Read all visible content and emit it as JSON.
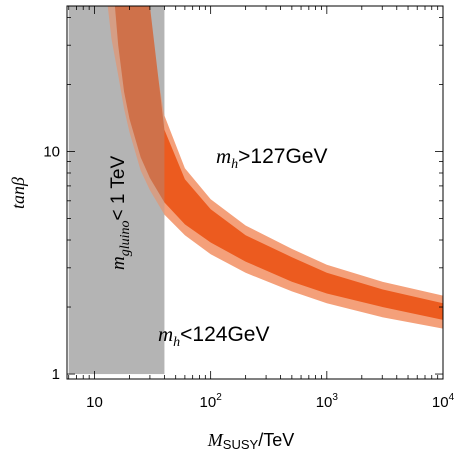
{
  "chart_data": {
    "type": "area",
    "xlabel": "M_SUSY/TeV",
    "xlabel_main": "M",
    "xlabel_sub": "SUSY",
    "xlabel_rest": "/TeV",
    "ylabel": "tanβ",
    "x_scale": "log",
    "y_scale": "log",
    "xlim": [
      5.8,
      10000
    ],
    "ylim": [
      0.95,
      45
    ],
    "x_ticks": [
      {
        "value": 10,
        "base": "10",
        "exp": ""
      },
      {
        "value": 100,
        "base": "10",
        "exp": "2"
      },
      {
        "value": 1000,
        "base": "10",
        "exp": "3"
      },
      {
        "value": 10000,
        "base": "10",
        "exp": "4"
      }
    ],
    "y_ticks": [
      {
        "value": 1,
        "label": "1"
      },
      {
        "value": 10,
        "label": "10"
      }
    ],
    "excluded_region": {
      "label_main": "m",
      "label_sub": "gluino",
      "label_rest": "< 1 TeV",
      "x_range": [
        6,
        40
      ],
      "y_range": [
        1,
        45
      ],
      "color": "#c2c2c2"
    },
    "series": [
      {
        "band": "outer",
        "color": "#f4a07a",
        "x": [
          13,
          14,
          16,
          18,
          20,
          25,
          30,
          40,
          60,
          100,
          200,
          500,
          1000,
          3000,
          10000
        ],
        "lower": [
          45,
          32,
          22,
          15.5,
          12.2,
          8.2,
          6.7,
          5.2,
          4.2,
          3.45,
          2.85,
          2.35,
          2.08,
          1.8,
          1.6
        ],
        "upper": [
          45,
          45,
          45,
          45,
          45,
          45,
          36,
          14.5,
          8.4,
          6.1,
          4.65,
          3.65,
          3.1,
          2.6,
          2.25
        ]
      },
      {
        "band": "inner",
        "color": "#ec5b1f",
        "x": [
          15,
          16,
          18,
          20,
          25,
          30,
          40,
          60,
          100,
          200,
          500,
          1000,
          3000,
          10000
        ],
        "lower": [
          45,
          30,
          18.5,
          14,
          9.4,
          7.6,
          5.9,
          4.7,
          3.9,
          3.2,
          2.6,
          2.3,
          2.0,
          1.75
        ],
        "upper": [
          45,
          45,
          45,
          45,
          45,
          45,
          12.5,
          7.5,
          5.5,
          4.2,
          3.35,
          2.85,
          2.4,
          2.08
        ]
      }
    ],
    "annotations": [
      {
        "main": "m",
        "sub": "h",
        "rest": ">127GeV"
      },
      {
        "main": "m",
        "sub": "h",
        "rest": "<124GeV"
      }
    ]
  }
}
